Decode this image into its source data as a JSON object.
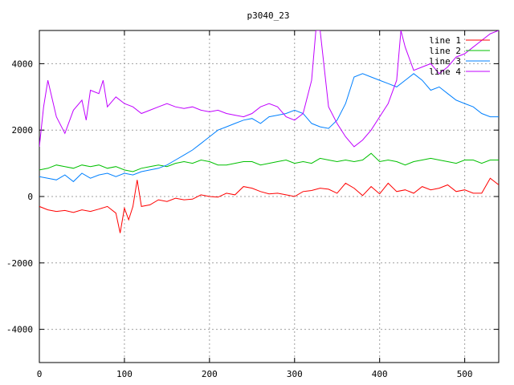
{
  "chart_data": {
    "type": "line",
    "title": "p3040_23",
    "xlabel": "",
    "ylabel": "",
    "xlim": [
      0,
      540
    ],
    "ylim": [
      -5000,
      5000
    ],
    "xticks": [
      0,
      100,
      200,
      300,
      400,
      500
    ],
    "yticks": [
      -4000,
      -2000,
      0,
      2000,
      4000
    ],
    "grid": true,
    "legend_position": "top-right",
    "series": [
      {
        "name": "line 1",
        "color": "#ff0000",
        "x": [
          0,
          10,
          20,
          30,
          40,
          50,
          60,
          70,
          80,
          90,
          95,
          100,
          105,
          110,
          115,
          120,
          130,
          140,
          150,
          160,
          170,
          180,
          190,
          200,
          210,
          220,
          230,
          240,
          250,
          260,
          270,
          280,
          290,
          300,
          310,
          320,
          330,
          340,
          350,
          360,
          370,
          380,
          390,
          400,
          410,
          420,
          430,
          440,
          450,
          460,
          470,
          480,
          490,
          500,
          510,
          520,
          530,
          540
        ],
        "values": [
          -300,
          -400,
          -450,
          -420,
          -480,
          -400,
          -450,
          -380,
          -300,
          -500,
          -1100,
          -350,
          -700,
          -300,
          500,
          -300,
          -250,
          -100,
          -150,
          -50,
          -100,
          -80,
          50,
          0,
          -20,
          100,
          50,
          300,
          250,
          150,
          80,
          100,
          50,
          0,
          150,
          180,
          250,
          220,
          100,
          400,
          250,
          30,
          300,
          80,
          400,
          150,
          200,
          100,
          300,
          200,
          250,
          350,
          150,
          200,
          100,
          100,
          550,
          350
        ]
      },
      {
        "name": "line 2",
        "color": "#00c000",
        "x": [
          0,
          10,
          20,
          30,
          40,
          50,
          60,
          70,
          80,
          90,
          100,
          110,
          120,
          130,
          140,
          150,
          160,
          170,
          180,
          190,
          200,
          210,
          220,
          230,
          240,
          250,
          260,
          270,
          280,
          290,
          300,
          310,
          320,
          330,
          340,
          350,
          360,
          370,
          380,
          390,
          400,
          410,
          420,
          430,
          440,
          450,
          460,
          470,
          480,
          490,
          500,
          510,
          520,
          530,
          540
        ],
        "values": [
          800,
          850,
          950,
          900,
          850,
          950,
          900,
          950,
          850,
          900,
          800,
          750,
          850,
          900,
          950,
          900,
          1000,
          1050,
          1000,
          1100,
          1050,
          950,
          950,
          1000,
          1050,
          1050,
          950,
          1000,
          1050,
          1100,
          1000,
          1050,
          1000,
          1150,
          1100,
          1050,
          1100,
          1050,
          1100,
          1300,
          1050,
          1100,
          1050,
          950,
          1050,
          1100,
          1150,
          1100,
          1050,
          1000,
          1100,
          1100,
          1000,
          1100,
          1100
        ]
      },
      {
        "name": "line 3",
        "color": "#0080ff",
        "x": [
          0,
          10,
          20,
          30,
          40,
          50,
          60,
          70,
          80,
          90,
          100,
          110,
          120,
          130,
          140,
          150,
          160,
          170,
          180,
          190,
          200,
          210,
          220,
          230,
          240,
          250,
          260,
          270,
          280,
          290,
          300,
          310,
          320,
          330,
          340,
          350,
          360,
          370,
          380,
          390,
          400,
          410,
          420,
          430,
          440,
          450,
          460,
          470,
          480,
          490,
          500,
          510,
          520,
          530,
          540
        ],
        "values": [
          600,
          550,
          500,
          650,
          450,
          700,
          550,
          650,
          700,
          600,
          700,
          650,
          750,
          800,
          850,
          950,
          1100,
          1250,
          1400,
          1600,
          1800,
          2000,
          2100,
          2200,
          2300,
          2350,
          2200,
          2400,
          2450,
          2500,
          2600,
          2500,
          2200,
          2100,
          2050,
          2300,
          2800,
          3600,
          3700,
          3600,
          3500,
          3400,
          3300,
          3500,
          3700,
          3500,
          3200,
          3300,
          3100,
          2900,
          2800,
          2700,
          2500,
          2400,
          2400
        ]
      },
      {
        "name": "line 4",
        "color": "#c000ff",
        "x": [
          0,
          5,
          10,
          20,
          30,
          40,
          50,
          55,
          60,
          70,
          75,
          80,
          90,
          100,
          110,
          120,
          130,
          140,
          150,
          160,
          170,
          180,
          190,
          200,
          210,
          220,
          230,
          240,
          250,
          260,
          270,
          280,
          290,
          300,
          310,
          320,
          325,
          330,
          340,
          350,
          360,
          370,
          380,
          390,
          400,
          410,
          420,
          425,
          430,
          440,
          450,
          460,
          470,
          480,
          490,
          500,
          510,
          520,
          530,
          540
        ],
        "values": [
          1500,
          2700,
          3500,
          2400,
          1900,
          2600,
          2900,
          2300,
          3200,
          3100,
          3500,
          2700,
          3000,
          2800,
          2700,
          2500,
          2600,
          2700,
          2800,
          2700,
          2650,
          2700,
          2600,
          2550,
          2600,
          2500,
          2450,
          2400,
          2500,
          2700,
          2800,
          2700,
          2400,
          2300,
          2500,
          3500,
          5000,
          5000,
          2700,
          2200,
          1800,
          1500,
          1700,
          2000,
          2400,
          2800,
          3500,
          5000,
          4500,
          3800,
          3900,
          4000,
          3700,
          3900,
          4200,
          4300,
          4500,
          4700,
          4900,
          5000
        ]
      }
    ]
  }
}
